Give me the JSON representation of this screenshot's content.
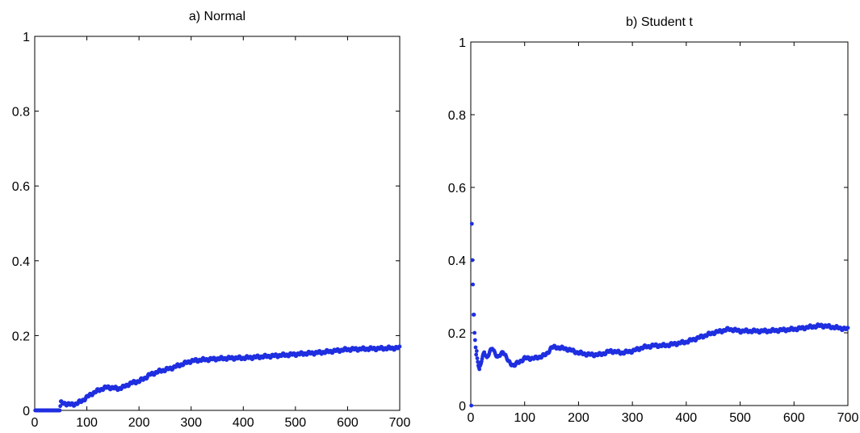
{
  "chart_data": [
    {
      "type": "scatter",
      "title": "a) Normal",
      "xlim": [
        0,
        700
      ],
      "ylim": [
        0,
        1
      ],
      "xticks": [
        "0",
        "100",
        "200",
        "300",
        "400",
        "500",
        "600",
        "700"
      ],
      "yticks": [
        "0",
        "0.2",
        "0.4",
        "0.6",
        "0.8",
        "1"
      ],
      "grid": false,
      "marker_color": "#1f2fe0",
      "anchors": [
        [
          0,
          0
        ],
        [
          48,
          0
        ],
        [
          50,
          0.02
        ],
        [
          60,
          0.018
        ],
        [
          70,
          0.015
        ],
        [
          80,
          0.018
        ],
        [
          90,
          0.025
        ],
        [
          100,
          0.035
        ],
        [
          110,
          0.045
        ],
        [
          120,
          0.052
        ],
        [
          130,
          0.058
        ],
        [
          140,
          0.062
        ],
        [
          150,
          0.06
        ],
        [
          160,
          0.058
        ],
        [
          170,
          0.062
        ],
        [
          180,
          0.07
        ],
        [
          190,
          0.075
        ],
        [
          200,
          0.078
        ],
        [
          210,
          0.085
        ],
        [
          220,
          0.095
        ],
        [
          240,
          0.105
        ],
        [
          260,
          0.112
        ],
        [
          280,
          0.122
        ],
        [
          300,
          0.132
        ],
        [
          320,
          0.135
        ],
        [
          350,
          0.138
        ],
        [
          380,
          0.14
        ],
        [
          400,
          0.14
        ],
        [
          450,
          0.145
        ],
        [
          500,
          0.15
        ],
        [
          550,
          0.155
        ],
        [
          600,
          0.163
        ],
        [
          650,
          0.165
        ],
        [
          700,
          0.167
        ]
      ]
    },
    {
      "type": "scatter",
      "title": "b) Student t",
      "xlim": [
        0,
        700
      ],
      "ylim": [
        0,
        1
      ],
      "xticks": [
        "0",
        "100",
        "200",
        "300",
        "400",
        "500",
        "600",
        "700"
      ],
      "yticks": [
        "0",
        "0.2",
        "0.4",
        "0.6",
        "0.8",
        "1"
      ],
      "grid": false,
      "marker_color": "#1f2fe0",
      "early_points": [
        [
          1,
          0
        ],
        [
          2,
          0.5
        ],
        [
          3,
          0.4
        ],
        [
          4,
          0.333
        ],
        [
          5,
          0.25
        ],
        [
          6,
          0.25
        ],
        [
          7,
          0.2
        ],
        [
          8,
          0.18
        ],
        [
          9,
          0.16
        ],
        [
          10,
          0.14
        ],
        [
          11,
          0.15
        ],
        [
          12,
          0.13
        ],
        [
          13,
          0.12
        ],
        [
          14,
          0.11
        ],
        [
          15,
          0.105
        ],
        [
          16,
          0.1
        ]
      ],
      "anchors": [
        [
          16,
          0.1
        ],
        [
          25,
          0.15
        ],
        [
          30,
          0.13
        ],
        [
          40,
          0.16
        ],
        [
          50,
          0.13
        ],
        [
          60,
          0.15
        ],
        [
          70,
          0.12
        ],
        [
          80,
          0.11
        ],
        [
          90,
          0.12
        ],
        [
          100,
          0.13
        ],
        [
          120,
          0.13
        ],
        [
          140,
          0.14
        ],
        [
          150,
          0.16
        ],
        [
          160,
          0.16
        ],
        [
          180,
          0.155
        ],
        [
          200,
          0.145
        ],
        [
          220,
          0.14
        ],
        [
          240,
          0.14
        ],
        [
          260,
          0.15
        ],
        [
          280,
          0.145
        ],
        [
          300,
          0.15
        ],
        [
          320,
          0.16
        ],
        [
          340,
          0.165
        ],
        [
          360,
          0.165
        ],
        [
          380,
          0.17
        ],
        [
          400,
          0.175
        ],
        [
          420,
          0.185
        ],
        [
          450,
          0.2
        ],
        [
          480,
          0.21
        ],
        [
          500,
          0.205
        ],
        [
          550,
          0.205
        ],
        [
          600,
          0.21
        ],
        [
          650,
          0.22
        ],
        [
          700,
          0.21
        ]
      ]
    }
  ]
}
